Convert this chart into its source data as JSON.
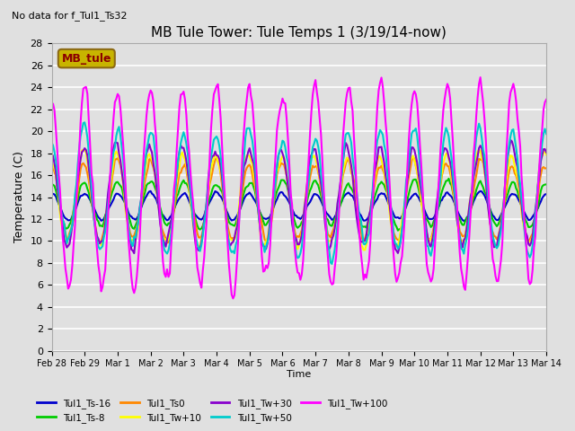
{
  "title": "MB Tule Tower: Tule Temps 1 (3/19/14-now)",
  "top_left_note": "No data for f_Tul1_Ts32",
  "ylabel": "Temperature (C)",
  "xlabel": "Time",
  "ylim": [
    0,
    28
  ],
  "yticks": [
    0,
    2,
    4,
    6,
    8,
    10,
    12,
    14,
    16,
    18,
    20,
    22,
    24,
    26,
    28
  ],
  "legend_box_text": "MB_tule",
  "legend_box_color": "#c8b400",
  "legend_box_text_color": "#8b0000",
  "background_color": "#e0e0e0",
  "plot_bg_color": "#e0e0e0",
  "series": [
    {
      "label": "Tul1_Ts-16",
      "color": "#0000cc",
      "lw": 1.5
    },
    {
      "label": "Tul1_Ts-8",
      "color": "#00cc00",
      "lw": 1.5
    },
    {
      "label": "Tul1_Ts0",
      "color": "#ff8800",
      "lw": 1.5
    },
    {
      "label": "Tul1_Tw+10",
      "color": "#ffff00",
      "lw": 1.5
    },
    {
      "label": "Tul1_Tw+30",
      "color": "#8800cc",
      "lw": 1.5
    },
    {
      "label": "Tul1_Tw+50",
      "color": "#00cccc",
      "lw": 1.5
    },
    {
      "label": "Tul1_Tw+100",
      "color": "#ff00ff",
      "lw": 1.5
    }
  ],
  "xtick_labels": [
    "Feb 28",
    "Feb 29",
    "Mar 1",
    "Mar 2",
    "Mar 3",
    "Mar 4",
    "Mar 5",
    "Mar 6",
    "Mar 7",
    "Mar 8",
    "Mar 9",
    "Mar 10",
    "Mar 11",
    "Mar 12",
    "Mar 13",
    "Mar 14"
  ],
  "xtick_offsets": [
    0,
    1,
    2,
    3,
    4,
    5,
    6,
    7,
    8,
    9,
    10,
    11,
    12,
    13,
    14,
    15
  ]
}
